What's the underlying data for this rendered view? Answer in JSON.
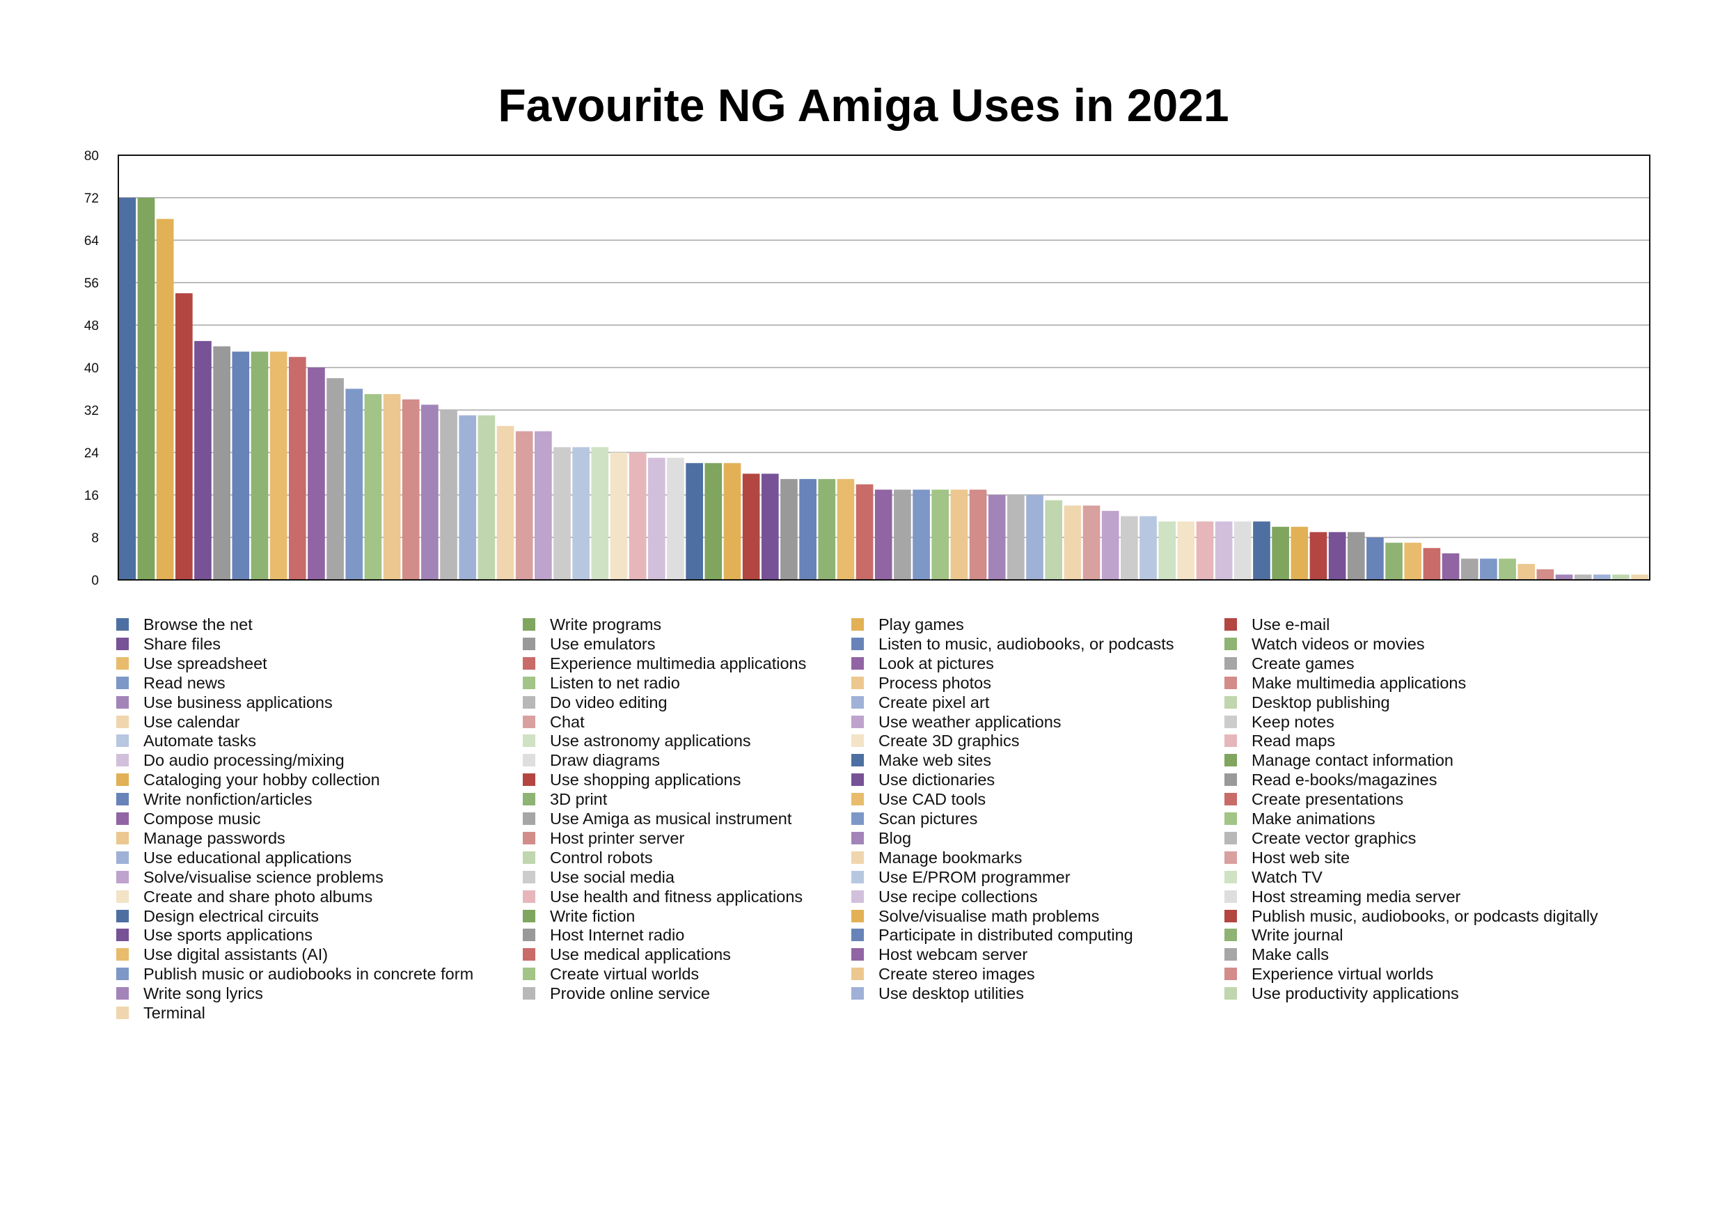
{
  "chart_data": {
    "type": "bar",
    "title": "Favourite NG Amiga Uses in 2021",
    "xlabel": "",
    "ylabel": "",
    "ylim": [
      0,
      80
    ],
    "yticks": [
      0,
      8,
      16,
      24,
      32,
      40,
      48,
      56,
      64,
      72,
      80
    ],
    "grid": true,
    "legend_position": "bottom",
    "colors": [
      "#4e6fa1",
      "#7fa55e",
      "#e2b055",
      "#b34641",
      "#775297",
      "#999999",
      "#6783b8",
      "#8fb373",
      "#e8bc6c",
      "#c86b69",
      "#9164a4",
      "#a6a6a6",
      "#7d97c7",
      "#a2c486",
      "#ecc78f",
      "#d28c89",
      "#a384b9",
      "#b8b8b8",
      "#9fb1d6",
      "#bfd6ae",
      "#f0d6ae",
      "#d9a0a0",
      "#bea3cd",
      "#cccccc",
      "#b7c7e0",
      "#cfe2c4",
      "#f3e3c7",
      "#e6b6bb",
      "#d2bfdc",
      "#dedede"
    ],
    "series": [
      {
        "name": "Browse the net",
        "value": 72
      },
      {
        "name": "Write programs",
        "value": 72
      },
      {
        "name": "Play games",
        "value": 68
      },
      {
        "name": "Use e-mail",
        "value": 54
      },
      {
        "name": "Share files",
        "value": 45
      },
      {
        "name": "Use emulators",
        "value": 44
      },
      {
        "name": "Listen to music, audiobooks, or podcasts",
        "value": 43
      },
      {
        "name": "Watch videos or movies",
        "value": 43
      },
      {
        "name": "Use spreadsheet",
        "value": 43
      },
      {
        "name": "Experience multimedia applications",
        "value": 42
      },
      {
        "name": "Look at pictures",
        "value": 40
      },
      {
        "name": "Create games",
        "value": 38
      },
      {
        "name": "Read news",
        "value": 36
      },
      {
        "name": "Listen to net radio",
        "value": 35
      },
      {
        "name": "Process photos",
        "value": 35
      },
      {
        "name": "Make multimedia applications",
        "value": 34
      },
      {
        "name": "Use business applications",
        "value": 33
      },
      {
        "name": "Do video editing",
        "value": 32
      },
      {
        "name": "Create pixel art",
        "value": 31
      },
      {
        "name": "Desktop publishing",
        "value": 31
      },
      {
        "name": "Use calendar",
        "value": 29
      },
      {
        "name": "Chat",
        "value": 28
      },
      {
        "name": "Use weather applications",
        "value": 28
      },
      {
        "name": "Keep notes",
        "value": 25
      },
      {
        "name": "Automate tasks",
        "value": 25
      },
      {
        "name": "Use astronomy applications",
        "value": 25
      },
      {
        "name": "Create 3D graphics",
        "value": 24
      },
      {
        "name": "Read maps",
        "value": 24
      },
      {
        "name": "Do audio processing/mixing",
        "value": 23
      },
      {
        "name": "Draw diagrams",
        "value": 23
      },
      {
        "name": "Make web sites",
        "value": 22
      },
      {
        "name": "Manage contact information",
        "value": 22
      },
      {
        "name": "Cataloging your hobby collection",
        "value": 22
      },
      {
        "name": "Use shopping applications",
        "value": 20
      },
      {
        "name": "Use dictionaries",
        "value": 20
      },
      {
        "name": "Read e-books/magazines",
        "value": 19
      },
      {
        "name": "Write nonfiction/articles",
        "value": 19
      },
      {
        "name": "3D print",
        "value": 19
      },
      {
        "name": "Use CAD tools",
        "value": 19
      },
      {
        "name": "Create presentations",
        "value": 18
      },
      {
        "name": "Compose music",
        "value": 17
      },
      {
        "name": "Use Amiga as musical instrument",
        "value": 17
      },
      {
        "name": "Scan pictures",
        "value": 17
      },
      {
        "name": "Make animations",
        "value": 17
      },
      {
        "name": "Manage passwords",
        "value": 17
      },
      {
        "name": "Host printer server",
        "value": 17
      },
      {
        "name": "Blog",
        "value": 16
      },
      {
        "name": "Create vector graphics",
        "value": 16
      },
      {
        "name": "Use educational applications",
        "value": 16
      },
      {
        "name": "Control robots",
        "value": 15
      },
      {
        "name": "Manage bookmarks",
        "value": 14
      },
      {
        "name": "Host web site",
        "value": 14
      },
      {
        "name": "Solve/visualise science problems",
        "value": 13
      },
      {
        "name": "Use social media",
        "value": 12
      },
      {
        "name": "Use E/PROM programmer",
        "value": 12
      },
      {
        "name": "Watch TV",
        "value": 11
      },
      {
        "name": "Create and share photo albums",
        "value": 11
      },
      {
        "name": "Use health and fitness applications",
        "value": 11
      },
      {
        "name": "Use recipe collections",
        "value": 11
      },
      {
        "name": "Host streaming media server",
        "value": 11
      },
      {
        "name": "Design electrical circuits",
        "value": 11
      },
      {
        "name": "Write fiction",
        "value": 10
      },
      {
        "name": "Solve/visualise math problems",
        "value": 10
      },
      {
        "name": "Publish music, audiobooks, or podcasts digitally",
        "value": 9
      },
      {
        "name": "Use sports applications",
        "value": 9
      },
      {
        "name": "Host Internet radio",
        "value": 9
      },
      {
        "name": "Participate in distributed computing",
        "value": 8
      },
      {
        "name": "Write journal",
        "value": 7
      },
      {
        "name": "Use digital assistants (AI)",
        "value": 7
      },
      {
        "name": "Use medical applications",
        "value": 6
      },
      {
        "name": "Host webcam server",
        "value": 5
      },
      {
        "name": "Make calls",
        "value": 4
      },
      {
        "name": "Publish music or audiobooks in concrete form",
        "value": 4
      },
      {
        "name": "Create virtual worlds",
        "value": 4
      },
      {
        "name": "Create stereo images",
        "value": 3
      },
      {
        "name": "Experience virtual worlds",
        "value": 2
      },
      {
        "name": "Write song lyrics",
        "value": 1
      },
      {
        "name": "Provide online service",
        "value": 1
      },
      {
        "name": "Use desktop utilities",
        "value": 1
      },
      {
        "name": "Use productivity applications",
        "value": 1
      },
      {
        "name": "Terminal",
        "value": 1
      }
    ]
  }
}
